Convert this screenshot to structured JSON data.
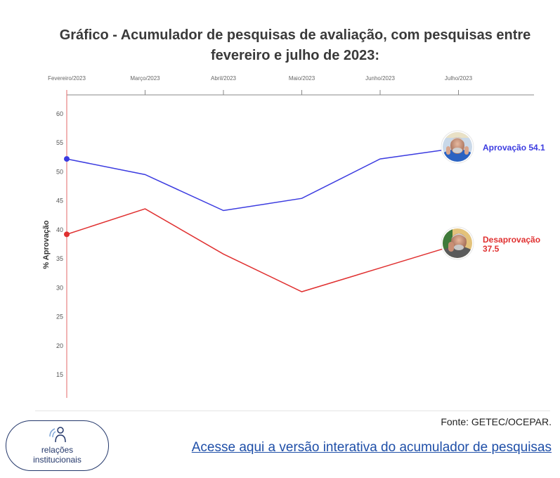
{
  "title": "Gráfico - Acumulador de pesquisas de avaliação, com pesquisas entre fevereiro e julho de 2023:",
  "chart_data": {
    "type": "line",
    "categories": [
      "Fevereiro/2023",
      "Março/2023",
      "Abril/2023",
      "Maio/2023",
      "Junho/2023",
      "Julho/2023"
    ],
    "ylabel": "% Aprovação",
    "yticks": [
      15,
      20,
      25,
      30,
      35,
      40,
      45,
      50,
      55,
      60
    ],
    "ylim": [
      11,
      63
    ],
    "grid": false,
    "series": [
      {
        "name": "Aprovação",
        "end_label": "Aprovação 54.1",
        "color": "#3b3be0",
        "values": [
          52.2,
          49.5,
          43.3,
          45.4,
          52.2,
          54.1
        ]
      },
      {
        "name": "Desaprovação",
        "end_label_line1": "Desaprovação",
        "end_label_line2": "37.5",
        "color": "#e03030",
        "values": [
          39.2,
          43.6,
          35.8,
          29.3,
          33.4,
          37.5
        ]
      }
    ]
  },
  "footer": {
    "source": "Fonte: GETEC/OCEPAR.",
    "link_text": "Acesse aqui a versão interativa do acumulador de pesquisas"
  },
  "logo": {
    "line1": "relações",
    "line2": "institucionais"
  },
  "colors": {
    "approval": "#3b3be0",
    "disapproval": "#e03030",
    "link": "#1f4fa8",
    "logo": "#24386b"
  }
}
